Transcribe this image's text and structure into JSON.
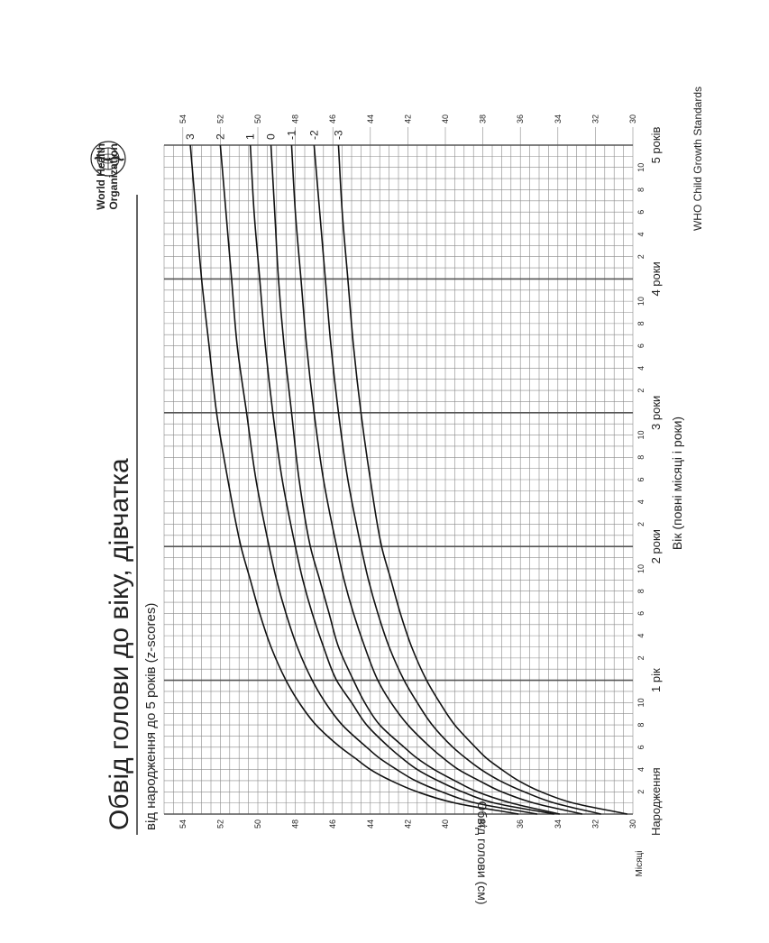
{
  "title": "Обвід голови до віку, дівчатка",
  "subtitle": "від народження до 5 років (z-scores)",
  "ylabel": "Обвід голови (см)",
  "xlabel": "Вік (повні місяці і роки)",
  "months_label": "Місяці",
  "footer": "WHO Child Growth Standards",
  "org": {
    "line1": "World Health",
    "line2": "Organization",
    "emblem": "who-emblem-icon"
  },
  "colors": {
    "curve": "#111111",
    "grid": "#8a8a8a",
    "major_grid": "#555555"
  },
  "chart_data": {
    "type": "line",
    "title": "Обвід голови до віку, дівчатка",
    "subtitle": "від народження до 5 років (z-scores)",
    "xlabel": "Вік (повні місяці і роки)",
    "ylabel": "Обвід голови (см)",
    "xlim": [
      0,
      60
    ],
    "ylim": [
      30,
      55
    ],
    "orientation": "rotated-90",
    "grid": true,
    "year_labels": [
      {
        "month": 0,
        "label": "Народження"
      },
      {
        "month": 12,
        "label": "1 рік"
      },
      {
        "month": 24,
        "label": "2 роки"
      },
      {
        "month": 36,
        "label": "3 роки"
      },
      {
        "month": 48,
        "label": "4 роки"
      },
      {
        "month": 60,
        "label": "5 років"
      }
    ],
    "month_ticks": [
      "2",
      "4",
      "6",
      "8",
      "10"
    ],
    "y_ticks": [
      "30",
      "32",
      "34",
      "36",
      "38",
      "40",
      "42",
      "44",
      "46",
      "48",
      "50",
      "52",
      "54"
    ],
    "x": [
      0,
      1,
      2,
      3,
      4,
      5,
      6,
      8,
      10,
      12,
      15,
      18,
      21,
      24,
      30,
      36,
      42,
      48,
      54,
      60
    ],
    "series": [
      {
        "name": "3",
        "values": [
          36.1,
          39.5,
          41.5,
          42.9,
          44.0,
          44.8,
          45.6,
          46.9,
          47.8,
          48.5,
          49.3,
          49.9,
          50.4,
          50.9,
          51.6,
          52.2,
          52.6,
          53.0,
          53.3,
          53.6
        ]
      },
      {
        "name": "2",
        "values": [
          35.1,
          38.4,
          40.2,
          41.6,
          42.6,
          43.5,
          44.2,
          45.5,
          46.4,
          47.1,
          47.9,
          48.5,
          49.0,
          49.4,
          50.1,
          50.6,
          51.1,
          51.4,
          51.7,
          52.0
        ]
      },
      {
        "name": "1",
        "values": [
          34.2,
          37.4,
          39.1,
          40.4,
          41.5,
          42.3,
          43.0,
          44.2,
          45.0,
          45.8,
          46.5,
          47.1,
          47.6,
          48.0,
          48.7,
          49.2,
          49.6,
          49.9,
          50.2,
          50.4
        ]
      },
      {
        "name": "0",
        "values": [
          33.9,
          36.5,
          38.3,
          39.5,
          40.6,
          41.5,
          42.2,
          43.5,
          44.3,
          44.9,
          45.7,
          46.2,
          46.7,
          47.2,
          47.8,
          48.2,
          48.6,
          48.9,
          49.1,
          49.3
        ]
      },
      {
        "name": "-1",
        "values": [
          32.7,
          35.3,
          37.0,
          38.2,
          39.3,
          40.1,
          40.8,
          42.0,
          42.9,
          43.6,
          44.3,
          44.9,
          45.4,
          45.8,
          46.5,
          47.0,
          47.4,
          47.7,
          48.0,
          48.2
        ]
      },
      {
        "name": "-2",
        "values": [
          31.7,
          34.2,
          35.8,
          37.1,
          38.1,
          38.9,
          39.6,
          40.7,
          41.5,
          42.2,
          43.0,
          43.6,
          44.1,
          44.5,
          45.2,
          45.7,
          46.1,
          46.4,
          46.7,
          47.0
        ]
      },
      {
        "name": "-3",
        "values": [
          30.3,
          33.2,
          34.9,
          36.1,
          37.0,
          37.8,
          38.4,
          39.5,
          40.3,
          41.0,
          41.8,
          42.4,
          42.9,
          43.4,
          44.0,
          44.5,
          44.9,
          45.2,
          45.5,
          45.7
        ]
      }
    ]
  }
}
